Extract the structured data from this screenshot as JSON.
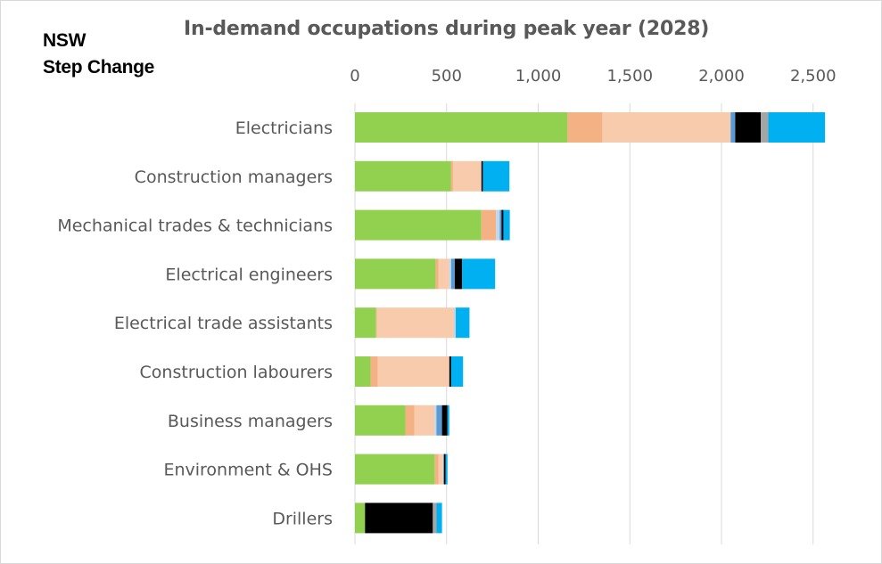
{
  "region": {
    "line1": "NSW",
    "line2": "Step Change"
  },
  "chart_data": {
    "type": "bar",
    "orientation": "horizontal",
    "stacked": true,
    "title": "In-demand occupations during peak year (2028)",
    "xlabel": "",
    "ylabel": "",
    "xlim": [
      0,
      2600
    ],
    "xticks": [
      0,
      500,
      1000,
      1500,
      2000,
      2500
    ],
    "xtick_labels": [
      "0",
      "500",
      "1,000",
      "1,500",
      "2,000",
      "2,500"
    ],
    "axis_position": "top",
    "gridlines": true,
    "legend": "none",
    "categories": [
      "Electricians",
      "Construction managers",
      "Mechanical trades & technicians",
      "Electrical engineers",
      "Electrical trade assistants",
      "Construction labourers",
      "Business managers",
      "Environment & OHS",
      "Drillers"
    ],
    "series": [
      {
        "name": "series-1",
        "color": "#92d050",
        "values": [
          1160,
          525,
          690,
          440,
          115,
          85,
          275,
          435,
          55
        ]
      },
      {
        "name": "series-2",
        "color": "#f4b183",
        "values": [
          190,
          10,
          80,
          15,
          5,
          40,
          50,
          20,
          0
        ]
      },
      {
        "name": "series-3",
        "color": "#f8cbad",
        "values": [
          700,
          155,
          0,
          60,
          420,
          390,
          110,
          25,
          0
        ]
      },
      {
        "name": "series-4",
        "color": "#bdd7ee",
        "values": [
          0,
          0,
          20,
          10,
          10,
          0,
          10,
          5,
          0
        ]
      },
      {
        "name": "series-5",
        "color": "#5b9bd5",
        "values": [
          25,
          0,
          10,
          20,
          0,
          0,
          30,
          0,
          0
        ]
      },
      {
        "name": "series-6",
        "color": "#000000",
        "values": [
          140,
          8,
          10,
          40,
          0,
          10,
          30,
          10,
          370
        ]
      },
      {
        "name": "series-7",
        "color": "#a5a5a5",
        "values": [
          40,
          0,
          0,
          0,
          0,
          0,
          0,
          0,
          20
        ]
      },
      {
        "name": "series-8",
        "color": "#00b0f0",
        "values": [
          310,
          145,
          35,
          180,
          75,
          65,
          10,
          10,
          30
        ]
      }
    ]
  }
}
